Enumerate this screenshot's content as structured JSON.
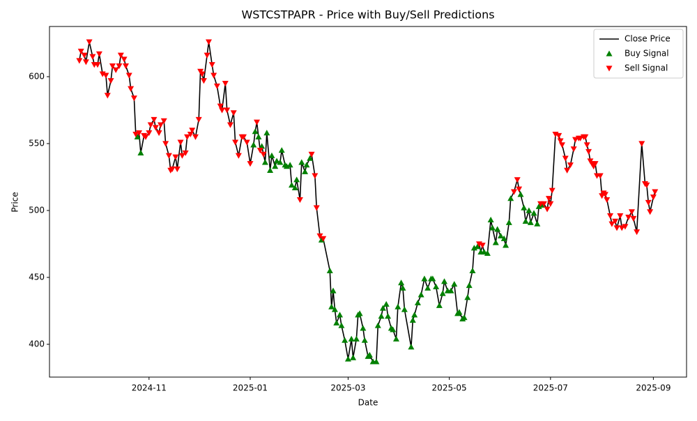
{
  "chart_data": {
    "type": "line",
    "title": "WSTCSTPAPR - Price with Buy/Sell Predictions",
    "x_label": "Date",
    "y_label": "Price",
    "xlim": [
      "2024-09-02",
      "2025-09-21"
    ],
    "xticks": [
      "2024-11",
      "2025-01",
      "2025-03",
      "2025-05",
      "2025-07",
      "2025-09"
    ],
    "ylim": [
      375.5,
      637.5
    ],
    "yticks": [
      400,
      450,
      500,
      550,
      600
    ],
    "grid": false,
    "legend": "upper right",
    "series": [
      {
        "name": "Close Price",
        "color": "#000000",
        "marker": "line",
        "x": [
          "2024-09-20",
          "2024-09-21",
          "2024-09-23",
          "2024-09-24",
          "2024-09-26",
          "2024-09-28",
          "2024-09-29",
          "2024-10-01",
          "2024-10-02",
          "2024-10-04",
          "2024-10-06",
          "2024-10-07",
          "2024-10-09",
          "2024-10-10",
          "2024-10-12",
          "2024-10-14",
          "2024-10-15",
          "2024-10-17",
          "2024-10-18",
          "2024-10-20",
          "2024-10-21",
          "2024-10-23",
          "2024-10-24",
          "2024-10-25",
          "2024-10-26",
          "2024-10-27",
          "2024-10-29",
          "2024-10-30",
          "2024-11-01",
          "2024-11-02",
          "2024-11-04",
          "2024-11-05",
          "2024-11-07",
          "2024-11-08",
          "2024-11-10",
          "2024-11-11",
          "2024-11-13",
          "2024-11-14",
          "2024-11-15",
          "2024-11-17",
          "2024-11-18",
          "2024-11-20",
          "2024-11-21",
          "2024-11-23",
          "2024-11-24",
          "2024-11-26",
          "2024-11-27",
          "2024-11-29",
          "2024-12-01",
          "2024-12-02",
          "2024-12-03",
          "2024-12-04",
          "2024-12-06",
          "2024-12-07",
          "2024-12-09",
          "2024-12-10",
          "2024-12-12",
          "2024-12-14",
          "2024-12-15",
          "2024-12-17",
          "2024-12-18",
          "2024-12-20",
          "2024-12-22",
          "2024-12-23",
          "2024-12-25",
          "2024-12-27",
          "2024-12-28",
          "2024-12-30",
          "2025-01-01",
          "2025-01-03",
          "2025-01-04",
          "2025-01-05",
          "2025-01-06",
          "2025-01-07",
          "2025-01-08",
          "2025-01-09",
          "2025-01-10",
          "2025-01-11",
          "2025-01-13",
          "2025-01-14",
          "2025-01-16",
          "2025-01-17",
          "2025-01-19",
          "2025-01-20",
          "2025-01-22",
          "2025-01-23",
          "2025-01-25",
          "2025-01-26",
          "2025-01-28",
          "2025-01-29",
          "2025-01-31",
          "2025-02-01",
          "2025-02-03",
          "2025-02-04",
          "2025-02-06",
          "2025-02-07",
          "2025-02-09",
          "2025-02-10",
          "2025-02-12",
          "2025-02-13",
          "2025-02-14",
          "2025-02-18",
          "2025-02-19",
          "2025-02-20",
          "2025-02-21",
          "2025-02-22",
          "2025-02-24",
          "2025-02-25",
          "2025-02-27",
          "2025-03-01",
          "2025-03-03",
          "2025-03-04",
          "2025-03-06",
          "2025-03-07",
          "2025-03-08",
          "2025-03-10",
          "2025-03-11",
          "2025-03-13",
          "2025-03-14",
          "2025-03-16",
          "2025-03-18",
          "2025-03-19",
          "2025-03-21",
          "2025-03-22",
          "2025-03-24",
          "2025-03-25",
          "2025-03-27",
          "2025-03-28",
          "2025-03-30",
          "2025-03-31",
          "2025-04-02",
          "2025-04-03",
          "2025-04-04",
          "2025-04-08",
          "2025-04-09",
          "2025-04-10",
          "2025-04-12",
          "2025-04-14",
          "2025-04-16",
          "2025-04-18",
          "2025-04-20",
          "2025-04-21",
          "2025-04-23",
          "2025-04-25",
          "2025-04-27",
          "2025-04-28",
          "2025-04-30",
          "2025-05-02",
          "2025-05-04",
          "2025-05-06",
          "2025-05-07",
          "2025-05-09",
          "2025-05-10",
          "2025-05-12",
          "2025-05-13",
          "2025-05-15",
          "2025-05-16",
          "2025-05-18",
          "2025-05-19",
          "2025-05-20",
          "2025-05-21",
          "2025-05-22",
          "2025-05-24",
          "2025-05-26",
          "2025-05-27",
          "2025-05-29",
          "2025-05-30",
          "2025-06-01",
          "2025-06-03",
          "2025-06-04",
          "2025-06-06",
          "2025-06-07",
          "2025-06-09",
          "2025-06-11",
          "2025-06-12",
          "2025-06-13",
          "2025-06-15",
          "2025-06-16",
          "2025-06-18",
          "2025-06-19",
          "2025-06-21",
          "2025-06-23",
          "2025-06-24",
          "2025-06-25",
          "2025-06-26",
          "2025-06-27",
          "2025-06-29",
          "2025-06-30",
          "2025-07-01",
          "2025-07-02",
          "2025-07-04",
          "2025-07-06",
          "2025-07-07",
          "2025-07-08",
          "2025-07-10",
          "2025-07-11",
          "2025-07-13",
          "2025-07-15",
          "2025-07-16",
          "2025-07-18",
          "2025-07-19",
          "2025-07-21",
          "2025-07-22",
          "2025-07-23",
          "2025-07-24",
          "2025-07-25",
          "2025-07-26",
          "2025-07-27",
          "2025-07-28",
          "2025-07-29",
          "2025-07-31",
          "2025-08-01",
          "2025-08-02",
          "2025-08-03",
          "2025-08-04",
          "2025-08-06",
          "2025-08-07",
          "2025-08-09",
          "2025-08-10",
          "2025-08-12",
          "2025-08-13",
          "2025-08-15",
          "2025-08-17",
          "2025-08-19",
          "2025-08-20",
          "2025-08-22",
          "2025-08-25",
          "2025-08-27",
          "2025-08-28",
          "2025-08-29",
          "2025-08-30",
          "2025-09-01",
          "2025-09-02"
        ],
        "values": [
          612,
          619,
          616,
          611,
          626,
          615,
          609,
          609,
          617,
          602,
          601,
          586,
          597,
          608,
          605,
          608,
          616,
          613,
          608,
          601,
          591,
          584,
          557,
          555,
          558,
          543,
          556,
          555,
          558,
          564,
          568,
          562,
          558,
          564,
          567,
          550,
          541,
          530,
          531,
          540,
          531,
          551,
          541,
          543,
          555,
          557,
          560,
          555,
          568,
          604,
          602,
          597,
          616,
          626,
          609,
          601,
          593,
          578,
          575,
          595,
          575,
          564,
          573,
          551,
          541,
          555,
          555,
          551,
          535,
          549,
          559,
          566,
          555,
          545,
          548,
          542,
          536,
          558,
          530,
          541,
          533,
          537,
          536,
          545,
          534,
          533,
          534,
          519,
          517,
          523,
          508,
          536,
          529,
          534,
          539,
          542,
          526,
          502,
          481,
          478,
          479,
          455,
          428,
          440,
          426,
          416,
          422,
          414,
          403,
          389,
          404,
          390,
          404,
          422,
          423,
          412,
          403,
          391,
          392,
          387,
          387,
          414,
          421,
          427,
          430,
          421,
          412,
          411,
          404,
          428,
          446,
          442,
          426,
          398,
          418,
          422,
          431,
          437,
          449,
          442,
          449,
          449,
          443,
          429,
          438,
          447,
          440,
          440,
          445,
          423,
          424,
          419,
          420,
          435,
          444,
          455,
          472,
          473,
          475,
          469,
          474,
          469,
          468,
          493,
          487,
          476,
          486,
          481,
          479,
          474,
          491,
          509,
          514,
          523,
          516,
          512,
          502,
          492,
          500,
          491,
          498,
          490,
          503,
          505,
          504,
          505,
          501,
          509,
          505,
          515,
          557,
          556,
          552,
          549,
          539,
          530,
          534,
          546,
          553,
          554,
          554,
          555,
          555,
          549,
          544,
          537,
          535,
          533,
          535,
          526,
          526,
          511,
          513,
          512,
          508,
          496,
          490,
          492,
          487,
          496,
          487,
          488,
          495,
          499,
          494,
          484,
          550,
          520,
          519,
          506,
          499,
          510,
          514
        ]
      },
      {
        "name": "Buy Signal",
        "color": "#008000",
        "marker": "triangle-up",
        "x": [
          "2024-10-25",
          "2024-10-27",
          "2025-01-03",
          "2025-01-04",
          "2025-01-06",
          "2025-01-08",
          "2025-01-10",
          "2025-01-11",
          "2025-01-13",
          "2025-01-14",
          "2025-01-16",
          "2025-01-17",
          "2025-01-19",
          "2025-01-20",
          "2025-01-22",
          "2025-01-23",
          "2025-01-25",
          "2025-01-26",
          "2025-01-28",
          "2025-01-29",
          "2025-02-01",
          "2025-02-03",
          "2025-02-04",
          "2025-02-06",
          "2025-02-13",
          "2025-02-18",
          "2025-02-19",
          "2025-02-20",
          "2025-02-21",
          "2025-02-22",
          "2025-02-24",
          "2025-02-25",
          "2025-02-27",
          "2025-03-01",
          "2025-03-03",
          "2025-03-04",
          "2025-03-06",
          "2025-03-07",
          "2025-03-08",
          "2025-03-10",
          "2025-03-11",
          "2025-03-13",
          "2025-03-14",
          "2025-03-16",
          "2025-03-18",
          "2025-03-19",
          "2025-03-21",
          "2025-03-22",
          "2025-03-24",
          "2025-03-25",
          "2025-03-27",
          "2025-03-28",
          "2025-03-30",
          "2025-03-31",
          "2025-04-02",
          "2025-04-03",
          "2025-04-04",
          "2025-04-08",
          "2025-04-09",
          "2025-04-10",
          "2025-04-12",
          "2025-04-14",
          "2025-04-16",
          "2025-04-18",
          "2025-04-20",
          "2025-04-21",
          "2025-04-23",
          "2025-04-25",
          "2025-04-27",
          "2025-04-28",
          "2025-04-30",
          "2025-05-02",
          "2025-05-04",
          "2025-05-06",
          "2025-05-07",
          "2025-05-09",
          "2025-05-10",
          "2025-05-12",
          "2025-05-13",
          "2025-05-15",
          "2025-05-16",
          "2025-05-18",
          "2025-05-20",
          "2025-05-22",
          "2025-05-24",
          "2025-05-26",
          "2025-05-27",
          "2025-05-29",
          "2025-05-30",
          "2025-06-01",
          "2025-06-03",
          "2025-06-04",
          "2025-06-06",
          "2025-06-07",
          "2025-06-13",
          "2025-06-15",
          "2025-06-16",
          "2025-06-18",
          "2025-06-19",
          "2025-06-21",
          "2025-06-23",
          "2025-06-24",
          "2025-06-26"
        ],
        "values": [
          555,
          543,
          549,
          559,
          555,
          548,
          536,
          558,
          530,
          541,
          533,
          537,
          536,
          545,
          534,
          533,
          534,
          519,
          517,
          523,
          536,
          529,
          534,
          539,
          478,
          455,
          428,
          440,
          426,
          416,
          422,
          414,
          403,
          389,
          404,
          390,
          404,
          422,
          423,
          412,
          403,
          391,
          392,
          387,
          387,
          414,
          421,
          427,
          430,
          421,
          412,
          411,
          404,
          428,
          446,
          442,
          426,
          398,
          418,
          422,
          431,
          437,
          449,
          442,
          449,
          449,
          443,
          429,
          438,
          447,
          440,
          440,
          445,
          423,
          424,
          419,
          420,
          435,
          444,
          455,
          472,
          473,
          469,
          469,
          468,
          493,
          487,
          476,
          486,
          481,
          479,
          474,
          491,
          509,
          512,
          502,
          492,
          500,
          491,
          498,
          490,
          503,
          504
        ]
      },
      {
        "name": "Sell Signal",
        "color": "#ff0000",
        "marker": "triangle-down",
        "x": [
          "2024-09-20",
          "2024-09-21",
          "2024-09-23",
          "2024-09-24",
          "2024-09-26",
          "2024-09-28",
          "2024-09-29",
          "2024-10-01",
          "2024-10-02",
          "2024-10-04",
          "2024-10-06",
          "2024-10-07",
          "2024-10-09",
          "2024-10-10",
          "2024-10-12",
          "2024-10-14",
          "2024-10-15",
          "2024-10-17",
          "2024-10-18",
          "2024-10-20",
          "2024-10-21",
          "2024-10-23",
          "2024-10-24",
          "2024-10-26",
          "2024-10-29",
          "2024-10-30",
          "2024-11-01",
          "2024-11-02",
          "2024-11-04",
          "2024-11-05",
          "2024-11-07",
          "2024-11-08",
          "2024-11-10",
          "2024-11-11",
          "2024-11-13",
          "2024-11-14",
          "2024-11-15",
          "2024-11-17",
          "2024-11-18",
          "2024-11-20",
          "2024-11-21",
          "2024-11-23",
          "2024-11-24",
          "2024-11-26",
          "2024-11-27",
          "2024-11-29",
          "2024-12-01",
          "2024-12-02",
          "2024-12-03",
          "2024-12-04",
          "2024-12-06",
          "2024-12-07",
          "2024-12-09",
          "2024-12-10",
          "2024-12-12",
          "2024-12-14",
          "2024-12-15",
          "2024-12-17",
          "2024-12-18",
          "2024-12-20",
          "2024-12-22",
          "2024-12-23",
          "2024-12-25",
          "2024-12-27",
          "2024-12-28",
          "2024-12-30",
          "2025-01-01",
          "2025-01-05",
          "2025-01-07",
          "2025-01-09",
          "2025-01-31",
          "2025-02-07",
          "2025-02-09",
          "2025-02-10",
          "2025-02-12",
          "2025-02-14",
          "2025-05-19",
          "2025-05-21",
          "2025-06-09",
          "2025-06-11",
          "2025-06-12",
          "2025-06-25",
          "2025-06-27",
          "2025-06-29",
          "2025-06-30",
          "2025-07-01",
          "2025-07-02",
          "2025-07-04",
          "2025-07-06",
          "2025-07-07",
          "2025-07-08",
          "2025-07-10",
          "2025-07-11",
          "2025-07-13",
          "2025-07-15",
          "2025-07-16",
          "2025-07-18",
          "2025-07-19",
          "2025-07-21",
          "2025-07-22",
          "2025-07-23",
          "2025-07-24",
          "2025-07-25",
          "2025-07-26",
          "2025-07-27",
          "2025-07-28",
          "2025-07-29",
          "2025-07-31",
          "2025-08-01",
          "2025-08-02",
          "2025-08-03",
          "2025-08-04",
          "2025-08-06",
          "2025-08-07",
          "2025-08-09",
          "2025-08-10",
          "2025-08-12",
          "2025-08-13",
          "2025-08-15",
          "2025-08-17",
          "2025-08-19",
          "2025-08-20",
          "2025-08-22",
          "2025-08-25",
          "2025-08-27",
          "2025-08-28",
          "2025-08-29",
          "2025-08-30",
          "2025-09-01",
          "2025-09-02"
        ],
        "values": [
          612,
          619,
          616,
          611,
          626,
          615,
          609,
          609,
          617,
          602,
          601,
          586,
          597,
          608,
          605,
          608,
          616,
          613,
          608,
          601,
          591,
          584,
          557,
          558,
          556,
          555,
          558,
          564,
          568,
          562,
          558,
          564,
          567,
          550,
          541,
          530,
          531,
          540,
          531,
          551,
          541,
          543,
          555,
          557,
          560,
          555,
          568,
          604,
          602,
          597,
          616,
          626,
          609,
          601,
          593,
          578,
          575,
          595,
          575,
          564,
          573,
          551,
          541,
          555,
          555,
          551,
          535,
          566,
          545,
          542,
          508,
          542,
          526,
          502,
          481,
          479,
          475,
          474,
          514,
          523,
          516,
          505,
          505,
          501,
          509,
          505,
          515,
          557,
          556,
          552,
          549,
          539,
          530,
          534,
          546,
          553,
          554,
          554,
          555,
          555,
          549,
          544,
          537,
          535,
          533,
          535,
          526,
          526,
          511,
          513,
          512,
          508,
          496,
          490,
          492,
          487,
          496,
          487,
          488,
          495,
          499,
          494,
          484,
          550,
          520,
          519,
          506,
          499,
          510,
          514
        ]
      }
    ]
  }
}
